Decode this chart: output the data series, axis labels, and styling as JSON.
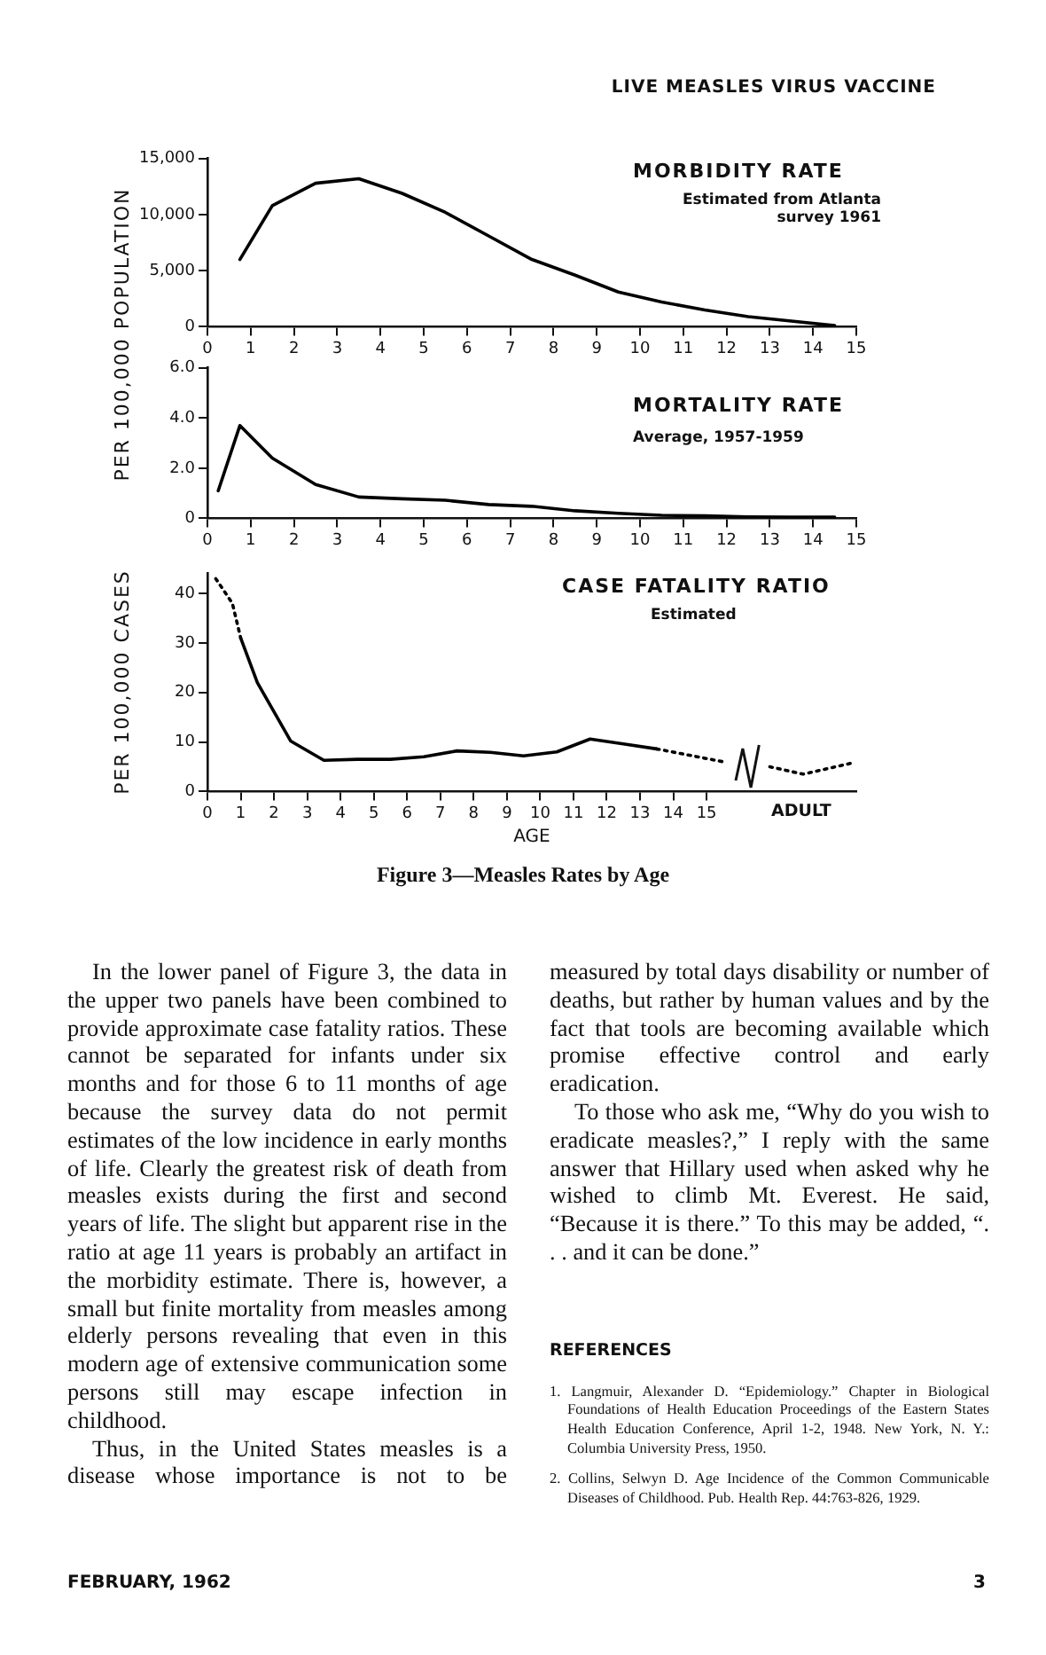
{
  "chart_data": [
    {
      "type": "line",
      "title": "MORBIDITY RATE",
      "subtitle": "Estimated from Atlanta survey 1961",
      "ylabel": "PER 100,000 POPULATION",
      "annotations": [
        "LIVE MEASLES VIRUS VACCINE"
      ],
      "color": "#000000",
      "marker": "none",
      "line_style": "solid",
      "grid": false,
      "legend": false,
      "x": [
        0.75,
        1.5,
        2.5,
        3.5,
        4.5,
        5.5,
        6.5,
        7.5,
        8.5,
        9.5,
        10.5,
        11.5,
        12.5,
        13.5,
        14.5
      ],
      "values": [
        6000,
        10800,
        12800,
        13200,
        11900,
        10200,
        8100,
        6000,
        4600,
        3100,
        2200,
        1500,
        900,
        500,
        100
      ],
      "xlim": [
        0,
        15
      ],
      "xticks": [
        0,
        1,
        2,
        3,
        4,
        5,
        6,
        7,
        8,
        9,
        10,
        11,
        12,
        13,
        14,
        15
      ],
      "ylim": [
        0,
        15000
      ],
      "yticks": [
        0,
        {
          "value": 5000,
          "label": "5,000"
        },
        {
          "value": 10000,
          "label": "10,000"
        },
        {
          "value": 15000,
          "label": "15,000"
        }
      ]
    },
    {
      "type": "line",
      "title": "MORTALITY RATE",
      "subtitle": "Average, 1957-1959",
      "color": "#000000",
      "marker": "none",
      "line_style": "solid",
      "grid": false,
      "legend": false,
      "x": [
        0.25,
        0.75,
        1.5,
        2.5,
        3.5,
        4.5,
        5.5,
        6.5,
        7.5,
        8.5,
        9.5,
        10.5,
        11.5,
        12.5,
        13.5,
        14.5
      ],
      "values": [
        1.1,
        3.7,
        2.4,
        1.35,
        0.85,
        0.78,
        0.72,
        0.55,
        0.48,
        0.3,
        0.2,
        0.12,
        0.1,
        0.06,
        0.05,
        0.05
      ],
      "xlim": [
        0,
        15
      ],
      "xticks": [
        0,
        1,
        2,
        3,
        4,
        5,
        6,
        7,
        8,
        9,
        10,
        11,
        12,
        13,
        14,
        15
      ],
      "ylim": [
        0,
        6
      ],
      "yticks": [
        0,
        {
          "value": 2,
          "label": "2.0"
        },
        {
          "value": 4,
          "label": "4.0"
        },
        {
          "value": 6,
          "label": "6.0"
        }
      ]
    },
    {
      "type": "line",
      "title": "CASE FATALITY RATIO",
      "subtitle": "Estimated",
      "xlabel": "AGE",
      "ylabel": "PER 100,000 CASES",
      "marker": "none",
      "grid": false,
      "legend": false,
      "annotations": [
        "ADULT",
        "Figure 3—Measles Rates by Age"
      ],
      "series": [
        {
          "color": "#000000",
          "line_style": "dotted",
          "x": [
            0.25,
            0.75,
            1.0
          ],
          "values": [
            43,
            38,
            31
          ]
        },
        {
          "color": "#000000",
          "line_style": "solid",
          "x": [
            1.0,
            1.5,
            2.5,
            3.5,
            4.5,
            5.5,
            6.5,
            7.5,
            8.5,
            9.5,
            10.5,
            11.5,
            12.5,
            13.5
          ],
          "values": [
            31,
            22,
            10.2,
            6.3,
            6.5,
            6.5,
            7,
            8.2,
            7.9,
            7.2,
            8,
            10.6,
            9.6,
            8.6
          ]
        },
        {
          "color": "#000000",
          "line_style": "dotted",
          "x": [
            13.5,
            15.5
          ],
          "values": [
            8.6,
            6
          ]
        },
        {
          "color": "#000000",
          "line_style": "dotted",
          "x": [
            16.9,
            17.9,
            19.4
          ],
          "values": [
            5,
            3.5,
            5.8
          ]
        }
      ],
      "xlim": [
        0,
        19.5
      ],
      "xticks": [
        0,
        1,
        2,
        3,
        4,
        5,
        6,
        7,
        8,
        9,
        10,
        11,
        12,
        13,
        14,
        15
      ],
      "ylim": [
        0,
        44
      ],
      "yticks": [
        0,
        10,
        20,
        30,
        40
      ]
    },
    {
      "type": "other",
      "annotations": [
        "In the lower panel of Figure 3, the data in the upper two panels have been combined to provide approximate case fatality ratios. These cannot be separated for infants under six months and for those 6 to 11 months of age because the survey data do not permit estimates of the low incidence in early months of life. Clearly the greatest risk of death from measles exists during the first and second years of life. The slight but apparent rise in the ratio at age 11 years is probably an artifact in the morbidity estimate. There is, however, a small but finite mortality from measles among elderly persons revealing that even in this modern age of extensive communication some persons still may escape infection in childhood.",
        "Thus, in the United States measles is a disease whose importance is not to be measured by total days disability or number of deaths, but rather by human values and by the fact that tools are becoming available which promise effective control and early eradication.",
        "To those who ask me, “Why do you wish to eradicate measles?,” I reply with the same answer that Hillary used when asked why he wished to climb Mt. Everest. He said, “Because it is there.” To this may be added, “. . . and it can be done.”",
        "REFERENCES",
        "1. Langmuir, Alexander D. “Epidemiology.” Chapter in Biological Foundations of Health Education Proceedings of the Eastern States Health Education Conference, April 1-2, 1948. New York, N. Y.: Columbia University Press, 1950.",
        "2. Collins, Selwyn D. Age Incidence of the Common Communicable Diseases of Childhood. Pub. Health Rep. 44:763-826, 1929.",
        "FEBRUARY, 1962",
        "3"
      ]
    }
  ]
}
